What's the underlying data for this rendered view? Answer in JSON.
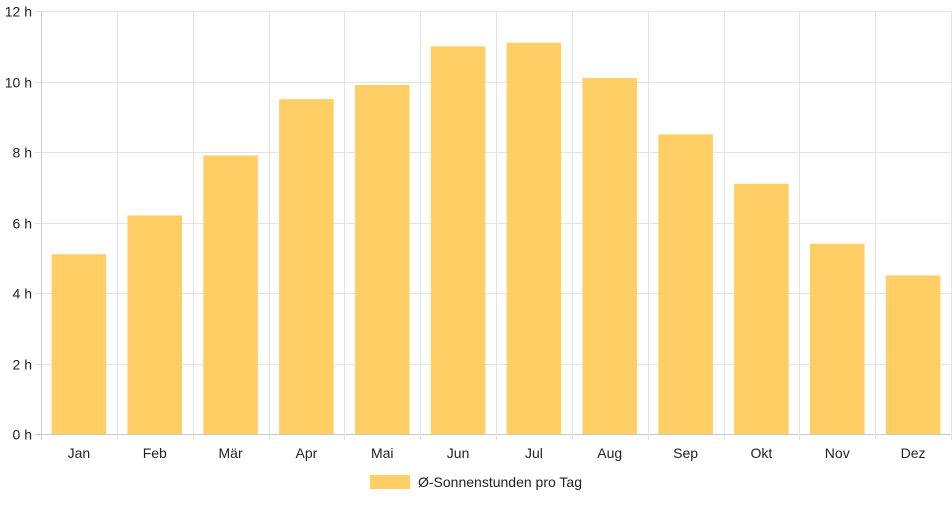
{
  "chart_data": {
    "type": "bar",
    "title": "",
    "xlabel": "",
    "ylabel": "",
    "categories": [
      "Jan",
      "Feb",
      "Mär",
      "Apr",
      "Mai",
      "Jun",
      "Jul",
      "Aug",
      "Sep",
      "Okt",
      "Nov",
      "Dez"
    ],
    "series": [
      {
        "name": "Ø-Sonnenstunden pro Tag",
        "values": [
          5.1,
          6.2,
          7.9,
          9.5,
          9.9,
          11.0,
          11.1,
          10.1,
          8.5,
          7.1,
          5.4,
          4.5
        ]
      }
    ],
    "ylim": [
      0,
      12
    ],
    "yticks": [
      0,
      2,
      4,
      6,
      8,
      10,
      12
    ],
    "ytick_suffix": " h",
    "grid": true,
    "legend_position": "bottom",
    "colors": {
      "bar": "#ffcf66",
      "grid": "#e3e3e3",
      "axis": "#c8c8c8"
    }
  }
}
